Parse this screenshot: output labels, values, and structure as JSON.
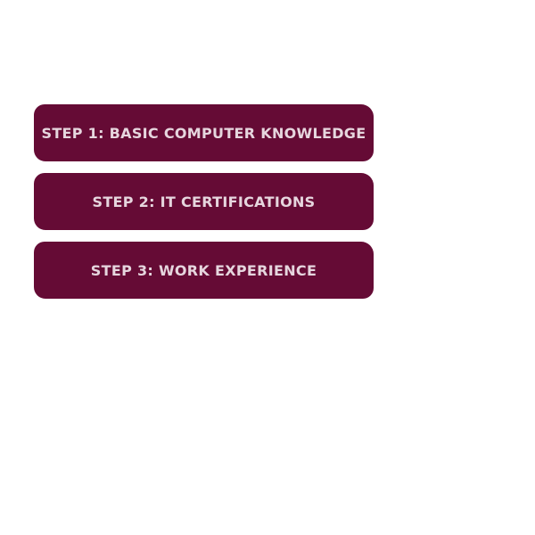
{
  "colors": {
    "step_background": "#650b35",
    "step_text": "#e6d6de",
    "page_background": "#ffffff"
  },
  "steps": [
    {
      "label": "STEP 1: BASIC COMPUTER KNOWLEDGE"
    },
    {
      "label": "STEP 2: IT CERTIFICATIONS"
    },
    {
      "label": "STEP 3: WORK EXPERIENCE"
    }
  ]
}
